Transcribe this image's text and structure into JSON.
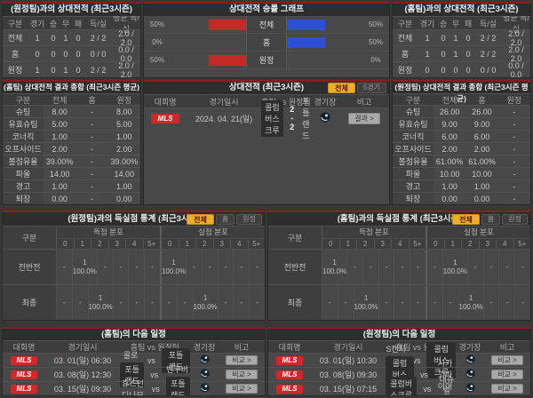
{
  "labels": {
    "vs": "vs"
  },
  "filters": {
    "all": "전체",
    "home": "홈",
    "away": "원정",
    "five_games": "5경기"
  },
  "theme": {
    "accent_red": "#8d1c1c",
    "badge_red": "#d02828",
    "bar_red": "#c62828",
    "bar_blue": "#2d4fd4",
    "selected_yellow": "#eeae2d"
  },
  "h2h_columns": [
    "구분",
    "경기",
    "승",
    "무",
    "패",
    "득/실",
    "평균 득/실"
  ],
  "summary_columns": [
    "구분",
    "전체",
    "홈",
    "원정"
  ],
  "gs_columns": {
    "label": "구분",
    "scored_group": "득점 분포",
    "conceded_group": "실점 분포",
    "scores": [
      "0",
      "1",
      "2",
      "3",
      "4",
      "5+"
    ]
  },
  "sched_columns": {
    "league": "대회명",
    "datetime": "경기일시",
    "teams": "홈팀 vs 원정팀",
    "stadium": "경기장",
    "note": "비고"
  },
  "top_left": {
    "title": "(원정팀)과의 상대전적 (최근3시즌)",
    "rows": [
      [
        "전체",
        "1",
        "0",
        "1",
        "0",
        "2 / 2",
        "2.0 / 2.0"
      ],
      [
        "홈",
        "0",
        "0",
        "0",
        "0",
        "0 / 0",
        "0.0 / 0.0"
      ],
      [
        "원정",
        "1",
        "0",
        "1",
        "0",
        "2 / 2",
        "2.0 / 2.0"
      ]
    ]
  },
  "graph": {
    "title": "상대전적 승률 그래프",
    "rows": [
      {
        "label": "전체",
        "left_pct": "50%",
        "right_pct": "50%"
      },
      {
        "label": "홈",
        "left_pct": "0%",
        "right_pct": "50%"
      },
      {
        "label": "원정",
        "left_pct": "50%",
        "right_pct": "0%"
      }
    ]
  },
  "top_right": {
    "title": "(홈팀)과의 상대전적 (최근3시즌)",
    "rows": [
      [
        "전체",
        "1",
        "0",
        "1",
        "0",
        "2 / 2",
        "2.0 / 2.0"
      ],
      [
        "홈",
        "1",
        "0",
        "1",
        "0",
        "2 / 2",
        "2.0 / 2.0"
      ],
      [
        "원정",
        "0",
        "0",
        "0",
        "0",
        "0 / 0",
        "0.0 / 0.0"
      ]
    ]
  },
  "home_summary": {
    "title": "(홈팀) 상대전적 결과 종합 (최근3시즌 평균)",
    "rows": [
      [
        "슈팅",
        "8.00",
        "-",
        "8.00"
      ],
      [
        "유효슈팅",
        "5.00",
        "-",
        "5.00"
      ],
      [
        "코너킥",
        "1.00",
        "-",
        "1.00"
      ],
      [
        "오프사이드",
        "2.00",
        "-",
        "2.00"
      ],
      [
        "볼점유율",
        "39.00%",
        "-",
        "39.00%"
      ],
      [
        "파울",
        "14.00",
        "-",
        "14.00"
      ],
      [
        "경고",
        "1.00",
        "-",
        "1.00"
      ],
      [
        "퇴장",
        "0.00",
        "-",
        "0.00"
      ]
    ]
  },
  "matches": {
    "title": "상대전적 (최근3시즌)",
    "row": {
      "league": "MLS",
      "datetime": "2024. 04. 21(일)",
      "home": "콜럼버스크루",
      "score": "2 - 2",
      "away": "포틀랜드",
      "note": "결과 >"
    }
  },
  "away_summary": {
    "title": "(원정팀) 상대전적 결과 종합 (최근3시즌 평균)",
    "rows": [
      [
        "슈팅",
        "26.00",
        "26.00",
        "-"
      ],
      [
        "유효슈팅",
        "9.00",
        "9.00",
        "-"
      ],
      [
        "코너킥",
        "6.00",
        "6.00",
        "-"
      ],
      [
        "오프사이드",
        "2.00",
        "2.00",
        "-"
      ],
      [
        "볼점유율",
        "61.00%",
        "61.00%",
        "-"
      ],
      [
        "파울",
        "10.00",
        "10.00",
        "-"
      ],
      [
        "경고",
        "1.00",
        "1.00",
        "-"
      ],
      [
        "퇴장",
        "0.00",
        "0.00",
        "-"
      ]
    ]
  },
  "goals_left": {
    "title": "(원정팀)과의 득실점 통계 (최근3시즌)",
    "rows": [
      {
        "label": "전반전",
        "scored": [
          {
            "c": "-",
            "p": ""
          },
          {
            "c": "1",
            "p": "100.0%"
          },
          {
            "c": "-",
            "p": ""
          },
          {
            "c": "-",
            "p": ""
          },
          {
            "c": "-",
            "p": ""
          },
          {
            "c": "-",
            "p": ""
          }
        ],
        "conceded": [
          {
            "c": "1",
            "p": "100.0%"
          },
          {
            "c": "-",
            "p": ""
          },
          {
            "c": "-",
            "p": ""
          },
          {
            "c": "-",
            "p": ""
          },
          {
            "c": "-",
            "p": ""
          },
          {
            "c": "-",
            "p": ""
          }
        ]
      },
      {
        "label": "최종",
        "scored": [
          {
            "c": "-",
            "p": ""
          },
          {
            "c": "-",
            "p": ""
          },
          {
            "c": "1",
            "p": "100.0%"
          },
          {
            "c": "-",
            "p": ""
          },
          {
            "c": "-",
            "p": ""
          },
          {
            "c": "-",
            "p": ""
          }
        ],
        "conceded": [
          {
            "c": "-",
            "p": ""
          },
          {
            "c": "-",
            "p": ""
          },
          {
            "c": "1",
            "p": "100.0%"
          },
          {
            "c": "-",
            "p": ""
          },
          {
            "c": "-",
            "p": ""
          },
          {
            "c": "-",
            "p": ""
          }
        ]
      }
    ]
  },
  "goals_right": {
    "title": "(홈팀)과의 득실점 통계 (최근3시즌)",
    "rows": [
      {
        "label": "전반전",
        "scored": [
          {
            "c": "1",
            "p": "100.0%"
          },
          {
            "c": "-",
            "p": ""
          },
          {
            "c": "-",
            "p": ""
          },
          {
            "c": "-",
            "p": ""
          },
          {
            "c": "-",
            "p": ""
          },
          {
            "c": "-",
            "p": ""
          }
        ],
        "conceded": [
          {
            "c": "-",
            "p": ""
          },
          {
            "c": "1",
            "p": "100.0%"
          },
          {
            "c": "-",
            "p": ""
          },
          {
            "c": "-",
            "p": ""
          },
          {
            "c": "-",
            "p": ""
          },
          {
            "c": "-",
            "p": ""
          }
        ]
      },
      {
        "label": "최종",
        "scored": [
          {
            "c": "-",
            "p": ""
          },
          {
            "c": "-",
            "p": ""
          },
          {
            "c": "1",
            "p": "100.0%"
          },
          {
            "c": "-",
            "p": ""
          },
          {
            "c": "-",
            "p": ""
          },
          {
            "c": "-",
            "p": ""
          }
        ],
        "conceded": [
          {
            "c": "-",
            "p": ""
          },
          {
            "c": "-",
            "p": ""
          },
          {
            "c": "1",
            "p": "100.0%"
          },
          {
            "c": "-",
            "p": ""
          },
          {
            "c": "-",
            "p": ""
          },
          {
            "c": "-",
            "p": ""
          }
        ]
      }
    ]
  },
  "schedule_left": {
    "title": "(홈팀)의 다음 일정",
    "rows": [
      {
        "league": "MLS",
        "datetime": "03. 01(일) 06:30",
        "home": "콜로라도",
        "away": "포틀랜드",
        "hl": "away",
        "note": "비교 >"
      },
      {
        "league": "MLS",
        "datetime": "03. 08(일) 12:30",
        "home": "포틀랜드",
        "away": "밴쿠버화이트",
        "hl": "home",
        "note": "비교 >"
      },
      {
        "league": "MLS",
        "datetime": "03. 15(일) 09:30",
        "home": "휴스턴디나모",
        "away": "포틀랜드",
        "hl": "away",
        "note": "비교 >"
      }
    ]
  },
  "schedule_right": {
    "title": "(원정팀)의 다음 일정",
    "rows": [
      {
        "league": "MLS",
        "datetime": "03. 01(일) 10:30",
        "home": "S캔자스시티",
        "away": "콜럼버스크루",
        "hl": "away",
        "note": "비교 >"
      },
      {
        "league": "MLS",
        "datetime": "03. 08(일) 09:30",
        "home": "콜럼버스크루",
        "away": "시카고파이어",
        "hl": "home",
        "note": "비교 >"
      },
      {
        "league": "MLS",
        "datetime": "03. 15(일) 07:15",
        "home": "콜럼버스크루",
        "away": "내슈빌SC",
        "hl": "home",
        "note": "비교 >"
      }
    ]
  }
}
